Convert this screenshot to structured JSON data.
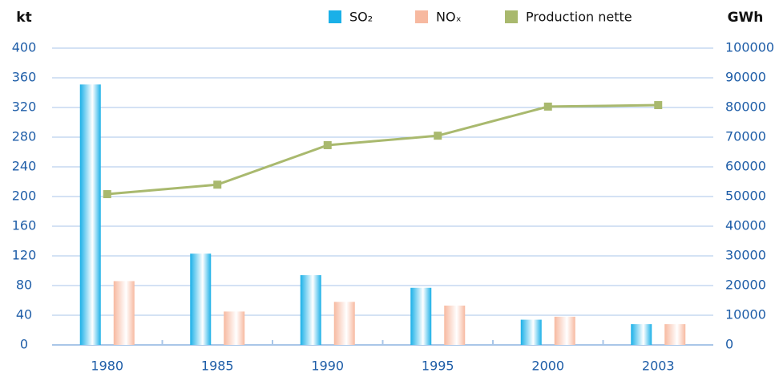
{
  "chart_data": {
    "type": "bar_line",
    "y_label": "kt",
    "y2_label": "GWh",
    "categories": [
      "1980",
      "1985",
      "1990",
      "1995",
      "2000",
      "2003"
    ],
    "series": [
      {
        "name": "SO₂",
        "color": "#1ab0e8",
        "type": "bar",
        "values": [
          351,
          123,
          94,
          77,
          34,
          28
        ]
      },
      {
        "name": "NOₓ",
        "color": "#f7b9a0",
        "type": "bar",
        "values": [
          86,
          45,
          58,
          53,
          38,
          28
        ]
      },
      {
        "name": "Production nette",
        "color": "#a9b96e",
        "type": "line",
        "axis": "y2",
        "values": [
          50800,
          54000,
          67300,
          70500,
          80300,
          80800
        ]
      }
    ],
    "ylim": [
      0,
      400
    ],
    "yticks": [
      0,
      40,
      80,
      120,
      160,
      200,
      240,
      280,
      320,
      360,
      400
    ],
    "y2lim": [
      0,
      100000
    ],
    "y2ticks": [
      0,
      10000,
      20000,
      30000,
      40000,
      50000,
      60000,
      70000,
      80000,
      90000,
      100000
    ],
    "grid": true
  }
}
